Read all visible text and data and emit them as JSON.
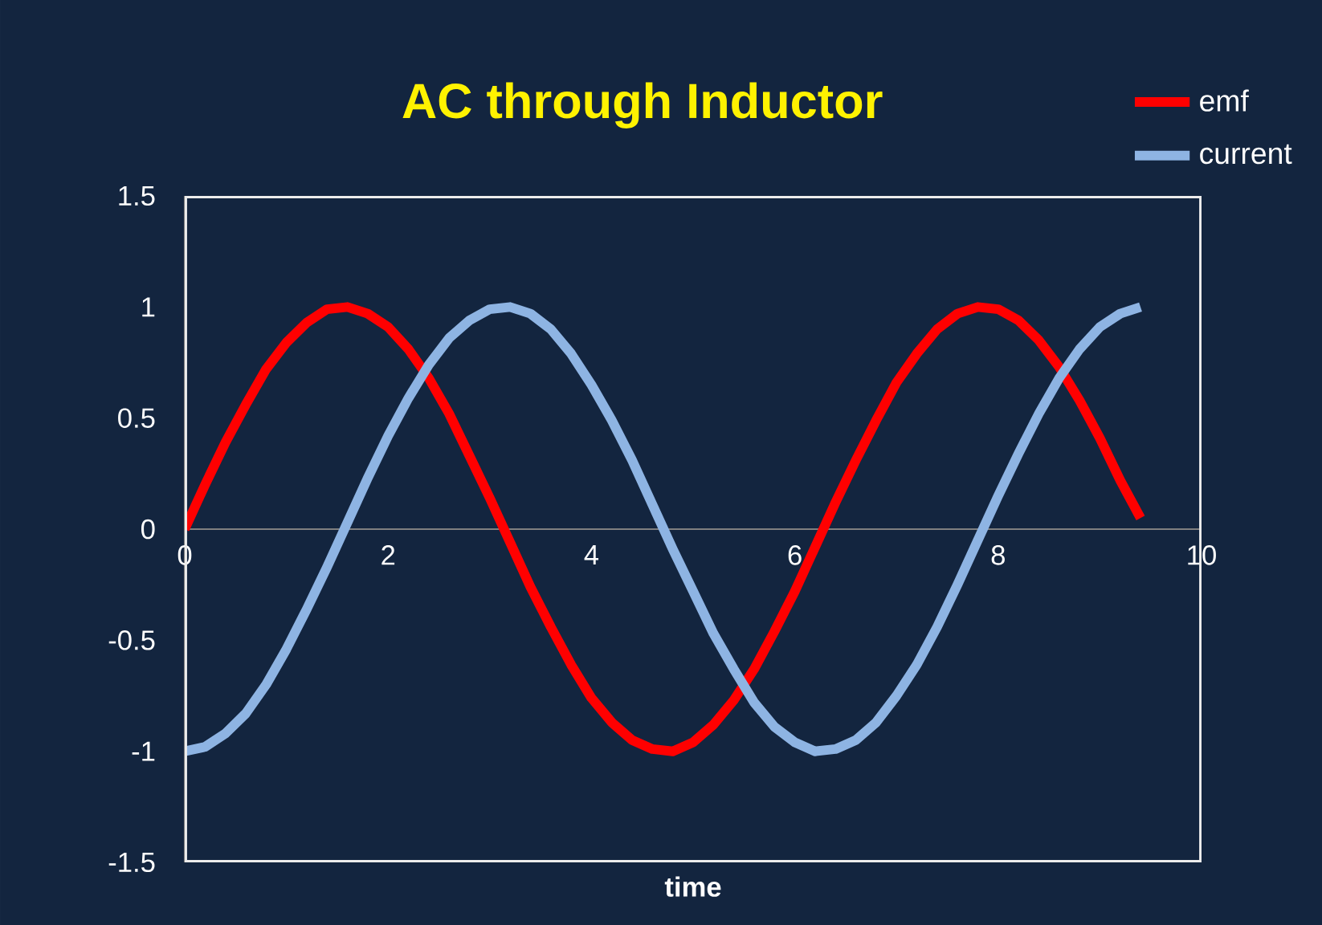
{
  "chart_data": {
    "type": "line",
    "title": "AC through Inductor",
    "xlabel": "time",
    "marker": "none",
    "legend": "top right",
    "xlim": [
      0,
      10
    ],
    "ylim": [
      -1.5,
      1.5
    ],
    "xticks": [
      0,
      2,
      4,
      6,
      8,
      10
    ],
    "yticks": [
      -1.5,
      -1,
      -0.5,
      0,
      0.5,
      1,
      1.5
    ],
    "x": [
      0,
      0.2,
      0.4,
      0.6,
      0.8,
      1.0,
      1.2,
      1.4,
      1.6,
      1.8,
      2.0,
      2.2,
      2.4,
      2.6,
      2.8,
      3.0,
      3.2,
      3.4,
      3.6,
      3.8,
      4.0,
      4.2,
      4.4,
      4.6,
      4.8,
      5.0,
      5.2,
      5.4,
      5.6,
      5.8,
      6.0,
      6.2,
      6.4,
      6.6,
      6.8,
      7.0,
      7.2,
      7.4,
      7.6,
      7.8,
      8.0,
      8.2,
      8.4,
      8.6,
      8.8,
      9.0,
      9.2,
      9.4
    ],
    "series": [
      {
        "name": "emf",
        "color": "#ff0000",
        "values": [
          0.0,
          0.2,
          0.39,
          0.56,
          0.72,
          0.84,
          0.93,
          0.99,
          1.0,
          0.97,
          0.91,
          0.81,
          0.68,
          0.52,
          0.33,
          0.14,
          -0.06,
          -0.26,
          -0.44,
          -0.61,
          -0.76,
          -0.87,
          -0.95,
          -0.99,
          -1.0,
          -0.96,
          -0.88,
          -0.77,
          -0.63,
          -0.46,
          -0.28,
          -0.08,
          0.12,
          0.31,
          0.49,
          0.66,
          0.79,
          0.9,
          0.97,
          1.0,
          0.99,
          0.94,
          0.85,
          0.73,
          0.58,
          0.41,
          0.22,
          0.05
        ]
      },
      {
        "name": "current",
        "color": "#8eb4e3",
        "values": [
          -1.0,
          -0.98,
          -0.92,
          -0.83,
          -0.7,
          -0.54,
          -0.36,
          -0.17,
          0.03,
          0.23,
          0.42,
          0.59,
          0.74,
          0.86,
          0.94,
          0.99,
          1.0,
          0.97,
          0.9,
          0.79,
          0.65,
          0.49,
          0.31,
          0.11,
          -0.09,
          -0.28,
          -0.47,
          -0.63,
          -0.78,
          -0.89,
          -0.96,
          -1.0,
          -0.99,
          -0.95,
          -0.87,
          -0.75,
          -0.61,
          -0.44,
          -0.25,
          -0.05,
          0.15,
          0.34,
          0.52,
          0.68,
          0.81,
          0.91,
          0.97,
          1.0
        ]
      }
    ]
  }
}
